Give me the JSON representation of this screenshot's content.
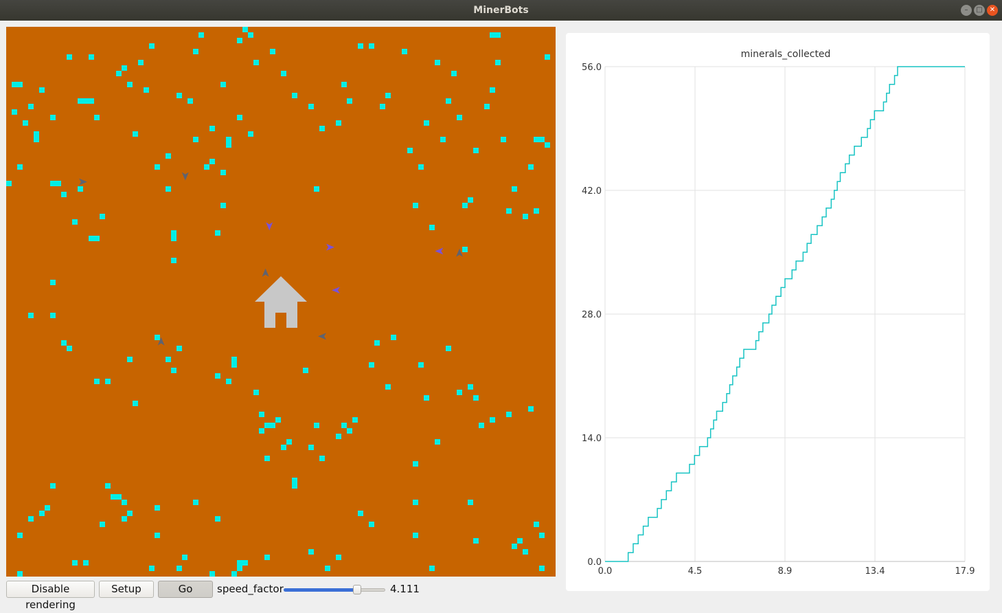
{
  "window": {
    "title": "MinerBots"
  },
  "colors": {
    "ground": "#c76400",
    "mineral": "#00eee6",
    "home": "#c8c8c8",
    "agent_gray": "#5f6370",
    "agent_purple": "#7a52d8",
    "chart_line": "#16c3c3",
    "slider_fill": "#3b6fd6"
  },
  "world": {
    "name": "mining-world",
    "grid_size": 100,
    "home_icon": "house-icon",
    "minerals": [
      [
        1,
        10
      ],
      [
        2,
        10
      ],
      [
        4,
        14
      ],
      [
        1,
        15
      ],
      [
        2,
        25
      ],
      [
        0,
        28
      ],
      [
        6,
        11
      ],
      [
        8,
        16
      ],
      [
        3,
        17
      ],
      [
        5,
        19
      ],
      [
        5,
        20
      ],
      [
        13,
        13
      ],
      [
        8,
        28
      ],
      [
        9,
        28
      ],
      [
        10,
        30
      ],
      [
        11,
        5
      ],
      [
        14,
        13
      ],
      [
        15,
        13
      ],
      [
        12,
        35
      ],
      [
        13,
        29
      ],
      [
        17,
        34
      ],
      [
        8,
        46
      ],
      [
        4,
        52
      ],
      [
        11,
        58
      ],
      [
        15,
        38
      ],
      [
        16,
        38
      ],
      [
        16,
        16
      ],
      [
        15,
        5
      ],
      [
        20,
        8
      ],
      [
        21,
        7
      ],
      [
        24,
        6
      ],
      [
        22,
        10
      ],
      [
        25,
        11
      ],
      [
        23,
        19
      ],
      [
        26,
        3
      ],
      [
        27,
        25
      ],
      [
        29,
        23
      ],
      [
        29,
        29
      ],
      [
        30,
        37
      ],
      [
        30,
        38
      ],
      [
        30,
        42
      ],
      [
        31,
        12
      ],
      [
        34,
        4
      ],
      [
        35,
        1
      ],
      [
        33,
        13
      ],
      [
        34,
        20
      ],
      [
        36,
        25
      ],
      [
        37,
        24
      ],
      [
        38,
        37
      ],
      [
        39,
        10
      ],
      [
        39,
        26
      ],
      [
        40,
        20
      ],
      [
        40,
        21
      ],
      [
        37,
        18
      ],
      [
        39,
        32
      ],
      [
        42,
        16
      ],
      [
        42,
        2
      ],
      [
        43,
        0
      ],
      [
        44,
        1
      ],
      [
        44,
        19
      ],
      [
        45,
        6
      ],
      [
        48,
        4
      ],
      [
        50,
        8
      ],
      [
        52,
        12
      ],
      [
        55,
        14
      ],
      [
        57,
        18
      ],
      [
        56,
        29
      ],
      [
        60,
        17
      ],
      [
        61,
        10
      ],
      [
        62,
        13
      ],
      [
        64,
        3
      ],
      [
        66,
        3
      ],
      [
        68,
        14
      ],
      [
        69,
        12
      ],
      [
        72,
        4
      ],
      [
        73,
        22
      ],
      [
        75,
        25
      ],
      [
        74,
        32
      ],
      [
        76,
        17
      ],
      [
        77,
        36
      ],
      [
        78,
        6
      ],
      [
        79,
        20
      ],
      [
        80,
        13
      ],
      [
        81,
        8
      ],
      [
        82,
        16
      ],
      [
        83,
        32
      ],
      [
        83,
        40
      ],
      [
        84,
        31
      ],
      [
        85,
        22
      ],
      [
        87,
        14
      ],
      [
        88,
        1
      ],
      [
        89,
        1
      ],
      [
        88,
        11
      ],
      [
        89,
        6
      ],
      [
        90,
        20
      ],
      [
        91,
        33
      ],
      [
        92,
        29
      ],
      [
        94,
        34
      ],
      [
        95,
        25
      ],
      [
        96,
        20
      ],
      [
        96,
        33
      ],
      [
        97,
        20
      ],
      [
        98,
        5
      ],
      [
        98,
        21
      ],
      [
        8,
        52
      ],
      [
        10,
        57
      ],
      [
        16,
        64
      ],
      [
        18,
        64
      ],
      [
        22,
        60
      ],
      [
        23,
        68
      ],
      [
        27,
        56
      ],
      [
        31,
        58
      ],
      [
        30,
        62
      ],
      [
        29,
        60
      ],
      [
        41,
        60
      ],
      [
        41,
        61
      ],
      [
        38,
        63
      ],
      [
        40,
        64
      ],
      [
        45,
        66
      ],
      [
        46,
        70
      ],
      [
        46,
        73
      ],
      [
        47,
        72
      ],
      [
        48,
        72
      ],
      [
        49,
        71
      ],
      [
        47,
        78
      ],
      [
        50,
        76
      ],
      [
        51,
        75
      ],
      [
        54,
        62
      ],
      [
        56,
        72
      ],
      [
        55,
        76
      ],
      [
        57,
        78
      ],
      [
        52,
        82
      ],
      [
        60,
        74
      ],
      [
        61,
        72
      ],
      [
        63,
        71
      ],
      [
        62,
        73
      ],
      [
        66,
        61
      ],
      [
        67,
        57
      ],
      [
        69,
        65
      ],
      [
        70,
        56
      ],
      [
        75,
        61
      ],
      [
        74,
        79
      ],
      [
        76,
        67
      ],
      [
        78,
        75
      ],
      [
        80,
        58
      ],
      [
        82,
        66
      ],
      [
        84,
        65
      ],
      [
        85,
        67
      ],
      [
        86,
        72
      ],
      [
        88,
        71
      ],
      [
        91,
        70
      ],
      [
        95,
        69
      ],
      [
        8,
        83
      ],
      [
        4,
        89
      ],
      [
        2,
        92
      ],
      [
        6,
        88
      ],
      [
        7,
        87
      ],
      [
        14,
        97
      ],
      [
        17,
        90
      ],
      [
        18,
        83
      ],
      [
        19,
        85
      ],
      [
        20,
        85
      ],
      [
        21,
        86
      ],
      [
        22,
        88
      ],
      [
        25,
        104
      ],
      [
        26,
        98
      ],
      [
        27,
        92
      ],
      [
        29,
        101
      ],
      [
        32,
        96
      ],
      [
        34,
        86
      ],
      [
        38,
        89
      ],
      [
        37,
        99
      ],
      [
        41,
        99
      ],
      [
        42,
        97
      ],
      [
        42,
        98
      ],
      [
        43,
        97
      ],
      [
        47,
        96
      ],
      [
        52,
        83
      ],
      [
        55,
        95
      ],
      [
        58,
        98
      ],
      [
        60,
        96
      ],
      [
        64,
        88
      ],
      [
        66,
        90
      ],
      [
        74,
        86
      ],
      [
        74,
        92
      ],
      [
        84,
        86
      ],
      [
        85,
        93
      ],
      [
        92,
        94
      ],
      [
        93,
        93
      ],
      [
        94,
        95
      ],
      [
        96,
        90
      ],
      [
        97,
        98
      ],
      [
        97,
        92
      ],
      [
        77,
        98
      ],
      [
        27,
        87
      ],
      [
        21,
        89
      ],
      [
        2,
        99
      ],
      [
        12,
        97
      ],
      [
        31,
        98
      ]
    ],
    "agents": [
      {
        "x": 14.0,
        "y": 28.2,
        "dir": "right",
        "color": "gray"
      },
      {
        "x": 32.6,
        "y": 27.2,
        "dir": "down",
        "color": "gray"
      },
      {
        "x": 47.9,
        "y": 36.3,
        "dir": "down",
        "color": "purple"
      },
      {
        "x": 59.0,
        "y": 40.1,
        "dir": "right",
        "color": "purple"
      },
      {
        "x": 78.8,
        "y": 40.8,
        "dir": "left",
        "color": "purple"
      },
      {
        "x": 82.5,
        "y": 41.1,
        "dir": "up",
        "color": "gray"
      },
      {
        "x": 47.2,
        "y": 44.7,
        "dir": "up",
        "color": "gray"
      },
      {
        "x": 60.0,
        "y": 47.9,
        "dir": "left",
        "color": "purple"
      },
      {
        "x": 57.5,
        "y": 56.3,
        "dir": "left",
        "color": "gray"
      },
      {
        "x": 28.2,
        "y": 57.2,
        "dir": "up",
        "color": "gray"
      }
    ],
    "home": {
      "x": 50.0,
      "y": 50.0
    }
  },
  "controls": {
    "disable_rendering_label": "Disable rendering",
    "setup_label": "Setup",
    "go_label": "Go",
    "speed_label": "speed_factor",
    "speed_value": "4.111",
    "speed_fraction": 0.74
  },
  "chart_data": {
    "type": "line",
    "title": "minerals_collected",
    "xlabel": "",
    "ylabel": "",
    "xlim": [
      0.0,
      17.9
    ],
    "ylim": [
      0.0,
      56.0
    ],
    "x_ticks": [
      "0.0",
      "4.5",
      "8.9",
      "13.4",
      "17.9"
    ],
    "y_ticks": [
      "0.0",
      "14.0",
      "28.0",
      "42.0",
      "56.0"
    ],
    "grid": true,
    "series": [
      {
        "style": "step",
        "x": [
          0,
          1.15,
          1.4,
          1.65,
          1.9,
          2.15,
          2.6,
          2.8,
          3.05,
          3.3,
          3.55,
          4.2,
          4.45,
          4.7,
          5.1,
          5.25,
          5.4,
          5.55,
          5.85,
          6.05,
          6.2,
          6.35,
          6.55,
          6.7,
          6.9,
          7.5,
          7.65,
          7.85,
          8.15,
          8.3,
          8.5,
          8.75,
          8.95,
          9.3,
          9.5,
          9.85,
          10.05,
          10.25,
          10.55,
          10.8,
          11.0,
          11.25,
          11.4,
          11.55,
          11.7,
          11.95,
          12.15,
          12.4,
          12.75,
          13.05,
          13.2,
          13.4,
          13.85,
          14.0,
          14.15,
          14.4,
          14.55,
          15.9,
          16.2,
          16.45,
          16.75,
          17.3,
          17.9
        ],
        "y": [
          0,
          1,
          2,
          3,
          4,
          5,
          6,
          7,
          8,
          9,
          10,
          11,
          12,
          13,
          14,
          15,
          16,
          17,
          18,
          19,
          20,
          21,
          22,
          23,
          24,
          25,
          26,
          27,
          28,
          29,
          30,
          31,
          32,
          33,
          34,
          35,
          36,
          37,
          38,
          39,
          40,
          41,
          42,
          43,
          44,
          45,
          46,
          47,
          48,
          49,
          50,
          51,
          52,
          53,
          54,
          55,
          56,
          56,
          56,
          56,
          56,
          56,
          56
        ]
      }
    ]
  }
}
